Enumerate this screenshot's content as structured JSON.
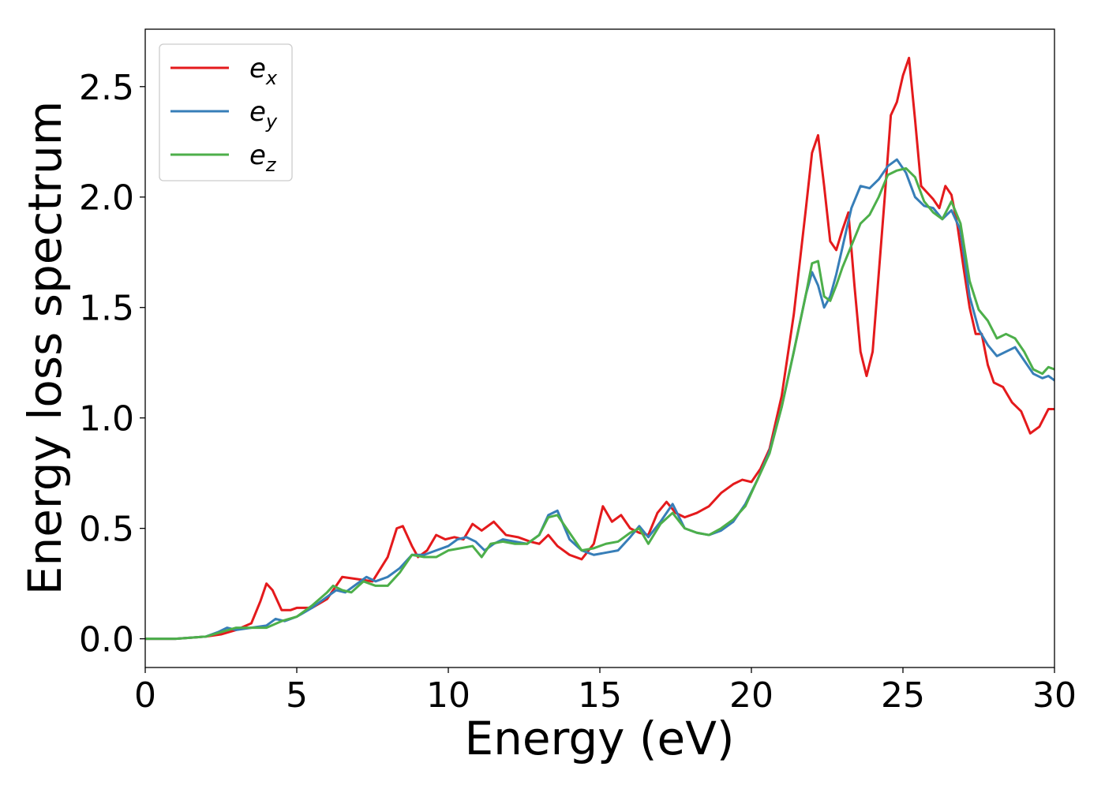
{
  "chart_data": {
    "type": "line",
    "title": "",
    "xlabel": "Energy (eV)",
    "ylabel": "Energy loss spectrum",
    "xlim": [
      0,
      30
    ],
    "ylim": [
      -0.13,
      2.76
    ],
    "xticks": [
      0,
      5,
      10,
      15,
      20,
      25,
      30
    ],
    "xtick_labels": [
      "0",
      "5",
      "10",
      "15",
      "20",
      "25",
      "30"
    ],
    "yticks": [
      0.0,
      0.5,
      1.0,
      1.5,
      2.0,
      2.5
    ],
    "ytick_labels": [
      "0.0",
      "0.5",
      "1.0",
      "1.5",
      "2.0",
      "2.5"
    ],
    "grid": false,
    "legend_position": "top-left",
    "series": [
      {
        "name": "e",
        "subscript": "x",
        "color": "#e41a1c",
        "x": [
          0,
          1,
          2,
          2.5,
          3,
          3.5,
          3.8,
          4.0,
          4.2,
          4.5,
          4.8,
          5.0,
          5.5,
          6.0,
          6.5,
          7.0,
          7.5,
          8.0,
          8.3,
          8.5,
          8.8,
          9.0,
          9.3,
          9.6,
          9.9,
          10.2,
          10.5,
          10.8,
          11.1,
          11.5,
          11.9,
          12.3,
          12.7,
          13.0,
          13.3,
          13.6,
          14.0,
          14.4,
          14.8,
          15.1,
          15.4,
          15.7,
          16.0,
          16.3,
          16.6,
          16.9,
          17.2,
          17.5,
          17.8,
          18.2,
          18.6,
          19.0,
          19.4,
          19.7,
          20.0,
          20.3,
          20.6,
          21.0,
          21.4,
          21.8,
          22.0,
          22.2,
          22.4,
          22.6,
          22.8,
          23.0,
          23.2,
          23.4,
          23.6,
          23.8,
          24.0,
          24.2,
          24.4,
          24.6,
          24.8,
          25.0,
          25.2,
          25.4,
          25.6,
          25.8,
          26.0,
          26.2,
          26.4,
          26.6,
          26.8,
          27.0,
          27.2,
          27.4,
          27.6,
          27.8,
          28.0,
          28.3,
          28.6,
          28.9,
          29.2,
          29.5,
          29.8,
          30.0
        ],
        "y": [
          0.0,
          0.0,
          0.01,
          0.02,
          0.04,
          0.07,
          0.17,
          0.25,
          0.22,
          0.13,
          0.13,
          0.14,
          0.14,
          0.18,
          0.28,
          0.27,
          0.26,
          0.37,
          0.5,
          0.51,
          0.42,
          0.37,
          0.4,
          0.47,
          0.45,
          0.46,
          0.45,
          0.52,
          0.49,
          0.53,
          0.47,
          0.46,
          0.44,
          0.43,
          0.47,
          0.42,
          0.38,
          0.36,
          0.43,
          0.6,
          0.53,
          0.56,
          0.5,
          0.48,
          0.47,
          0.57,
          0.62,
          0.57,
          0.55,
          0.57,
          0.6,
          0.66,
          0.7,
          0.72,
          0.71,
          0.77,
          0.86,
          1.1,
          1.47,
          1.95,
          2.2,
          2.28,
          2.05,
          1.8,
          1.76,
          1.85,
          1.93,
          1.6,
          1.3,
          1.19,
          1.3,
          1.65,
          2.0,
          2.37,
          2.43,
          2.55,
          2.63,
          2.35,
          2.05,
          2.02,
          1.99,
          1.95,
          2.05,
          2.01,
          1.87,
          1.68,
          1.5,
          1.38,
          1.38,
          1.24,
          1.16,
          1.14,
          1.07,
          1.03,
          0.93,
          0.96,
          1.04,
          1.04
        ]
      },
      {
        "name": "e",
        "subscript": "y",
        "color": "#377eb8",
        "x": [
          0,
          1,
          2,
          2.4,
          2.7,
          3.0,
          3.5,
          4.0,
          4.3,
          4.6,
          5.0,
          5.5,
          6.0,
          6.3,
          6.6,
          7.0,
          7.3,
          7.6,
          8.0,
          8.4,
          8.8,
          9.2,
          9.6,
          10.0,
          10.3,
          10.6,
          10.9,
          11.2,
          11.5,
          11.8,
          12.2,
          12.6,
          13.0,
          13.3,
          13.6,
          14.0,
          14.4,
          14.8,
          15.2,
          15.6,
          16.0,
          16.3,
          16.6,
          17.0,
          17.4,
          17.8,
          18.2,
          18.6,
          19.0,
          19.4,
          19.8,
          20.2,
          20.6,
          21.0,
          21.4,
          21.8,
          22.0,
          22.2,
          22.4,
          22.6,
          22.8,
          23.0,
          23.3,
          23.6,
          23.9,
          24.2,
          24.5,
          24.8,
          25.1,
          25.4,
          25.7,
          26.0,
          26.3,
          26.6,
          26.9,
          27.2,
          27.5,
          27.8,
          28.1,
          28.4,
          28.7,
          29.0,
          29.3,
          29.6,
          29.8,
          30.0
        ],
        "y": [
          0.0,
          0.0,
          0.01,
          0.03,
          0.05,
          0.04,
          0.05,
          0.06,
          0.09,
          0.08,
          0.1,
          0.14,
          0.19,
          0.22,
          0.21,
          0.25,
          0.28,
          0.26,
          0.28,
          0.32,
          0.38,
          0.38,
          0.4,
          0.42,
          0.45,
          0.46,
          0.44,
          0.4,
          0.43,
          0.45,
          0.44,
          0.43,
          0.47,
          0.56,
          0.58,
          0.45,
          0.4,
          0.38,
          0.39,
          0.4,
          0.46,
          0.51,
          0.46,
          0.53,
          0.61,
          0.5,
          0.48,
          0.47,
          0.49,
          0.53,
          0.61,
          0.72,
          0.85,
          1.05,
          1.3,
          1.56,
          1.66,
          1.6,
          1.5,
          1.55,
          1.65,
          1.77,
          1.95,
          2.05,
          2.04,
          2.08,
          2.14,
          2.17,
          2.11,
          2.0,
          1.96,
          1.95,
          1.9,
          1.94,
          1.85,
          1.55,
          1.4,
          1.33,
          1.28,
          1.3,
          1.32,
          1.26,
          1.2,
          1.18,
          1.19,
          1.17
        ]
      },
      {
        "name": "e",
        "subscript": "z",
        "color": "#4daf4a",
        "x": [
          0,
          1,
          2,
          2.5,
          3.0,
          3.5,
          4.0,
          4.5,
          5.0,
          5.5,
          6.0,
          6.2,
          6.5,
          6.8,
          7.2,
          7.6,
          8.0,
          8.4,
          8.8,
          9.2,
          9.6,
          10.0,
          10.4,
          10.8,
          11.1,
          11.4,
          11.8,
          12.2,
          12.6,
          13.0,
          13.3,
          13.6,
          14.0,
          14.4,
          14.8,
          15.2,
          15.6,
          16.0,
          16.3,
          16.6,
          17.0,
          17.4,
          17.8,
          18.2,
          18.6,
          19.0,
          19.4,
          19.8,
          20.2,
          20.6,
          21.0,
          21.4,
          21.8,
          22.0,
          22.2,
          22.4,
          22.6,
          22.8,
          23.0,
          23.3,
          23.6,
          23.9,
          24.2,
          24.5,
          24.8,
          25.1,
          25.4,
          25.7,
          26.0,
          26.3,
          26.6,
          26.9,
          27.2,
          27.5,
          27.8,
          28.1,
          28.4,
          28.7,
          29.0,
          29.3,
          29.6,
          29.8,
          30.0
        ],
        "y": [
          0.0,
          0.0,
          0.01,
          0.03,
          0.05,
          0.05,
          0.05,
          0.08,
          0.1,
          0.15,
          0.21,
          0.24,
          0.22,
          0.21,
          0.26,
          0.24,
          0.24,
          0.3,
          0.38,
          0.37,
          0.37,
          0.4,
          0.41,
          0.42,
          0.37,
          0.43,
          0.44,
          0.43,
          0.43,
          0.47,
          0.55,
          0.56,
          0.48,
          0.4,
          0.41,
          0.43,
          0.44,
          0.48,
          0.5,
          0.43,
          0.52,
          0.57,
          0.5,
          0.48,
          0.47,
          0.5,
          0.54,
          0.6,
          0.72,
          0.84,
          1.05,
          1.3,
          1.56,
          1.7,
          1.71,
          1.55,
          1.53,
          1.6,
          1.68,
          1.78,
          1.88,
          1.92,
          2.0,
          2.1,
          2.12,
          2.13,
          2.09,
          1.98,
          1.93,
          1.9,
          1.98,
          1.88,
          1.62,
          1.49,
          1.44,
          1.36,
          1.38,
          1.36,
          1.3,
          1.22,
          1.2,
          1.23,
          1.22
        ]
      }
    ]
  }
}
